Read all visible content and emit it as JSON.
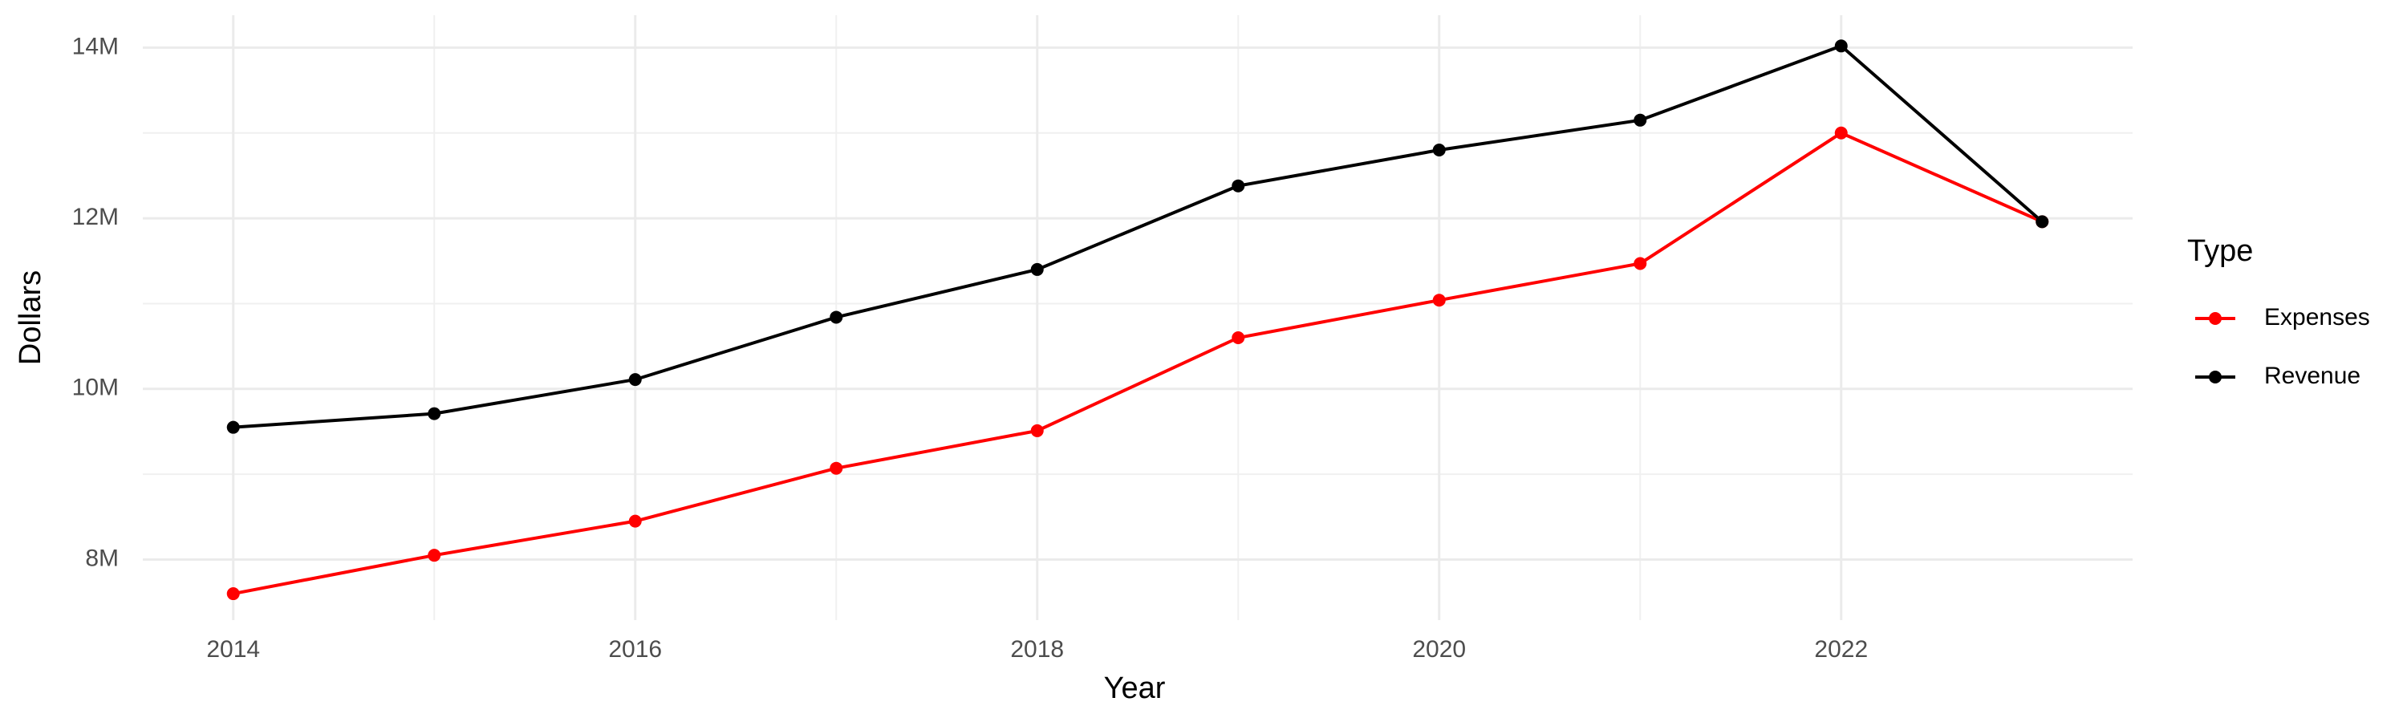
{
  "chart_data": {
    "type": "line",
    "x_label": "Year",
    "y_label": "Dollars",
    "x": [
      2014,
      2015,
      2016,
      2017,
      2018,
      2019,
      2020,
      2021,
      2022,
      2023
    ],
    "series": [
      {
        "name": "Expenses",
        "color": "#ff0000",
        "values": [
          7600000,
          8050000,
          8450000,
          9070000,
          9510000,
          10600000,
          11040000,
          11470000,
          13000000,
          11960000
        ]
      },
      {
        "name": "Revenue",
        "color": "#000000",
        "values": [
          9550000,
          9710000,
          10110000,
          10840000,
          11400000,
          12380000,
          12800000,
          13150000,
          14020000,
          11960000
        ]
      }
    ],
    "xlim": [
      2013.55,
      2023.45
    ],
    "xticks": [
      2014,
      2016,
      2018,
      2020,
      2022
    ],
    "ylim": [
      7290000,
      14380000
    ],
    "yticks": [
      {
        "value": 8000000,
        "label": "8M"
      },
      {
        "value": 10000000,
        "label": "10M"
      },
      {
        "value": 12000000,
        "label": "12M"
      },
      {
        "value": 14000000,
        "label": "14M"
      }
    ],
    "grid": true,
    "legend_title": "Type",
    "legend_position": "right"
  }
}
